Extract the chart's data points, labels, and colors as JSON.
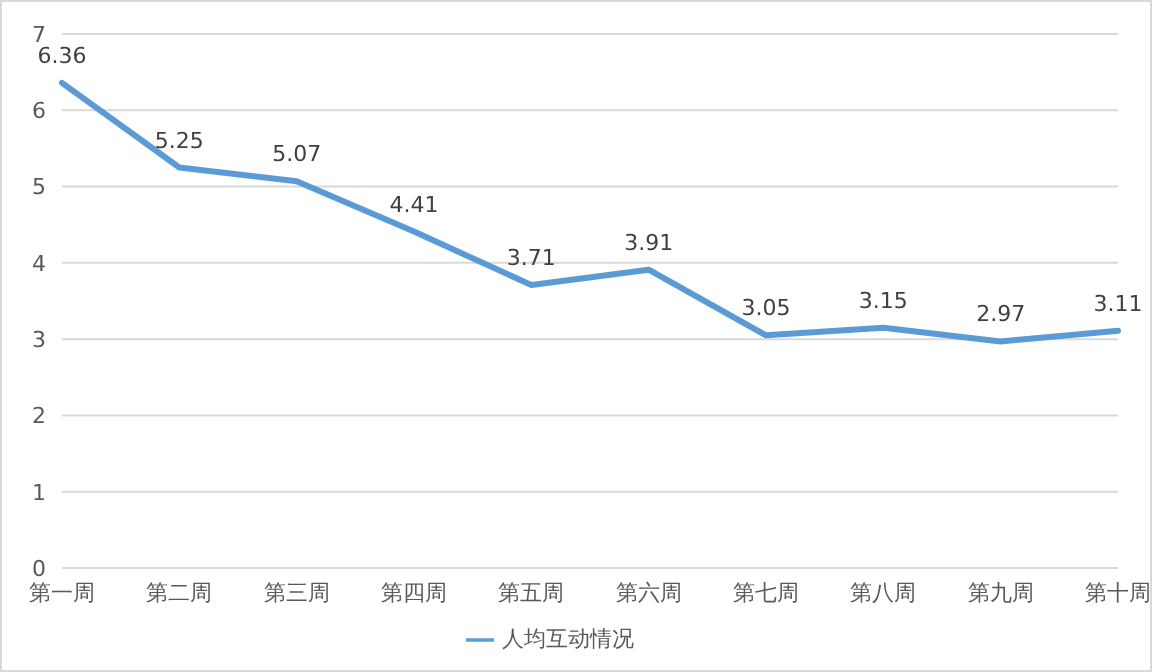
{
  "chart_data": {
    "type": "line",
    "categories": [
      "第一周",
      "第二周",
      "第三周",
      "第四周",
      "第五周",
      "第六周",
      "第七周",
      "第八周",
      "第九周",
      "第十周"
    ],
    "series": [
      {
        "name": "人均互动情况",
        "color": "#5b9bd5",
        "values": [
          6.36,
          5.25,
          5.07,
          4.41,
          3.71,
          3.91,
          3.05,
          3.15,
          2.97,
          3.11
        ]
      }
    ],
    "ylim": [
      0,
      7
    ],
    "yticks": [
      0,
      1,
      2,
      3,
      4,
      5,
      6,
      7
    ],
    "grid": "y",
    "legend": "bottom",
    "data_labels": true,
    "marker": "none",
    "line_style": "solid"
  }
}
